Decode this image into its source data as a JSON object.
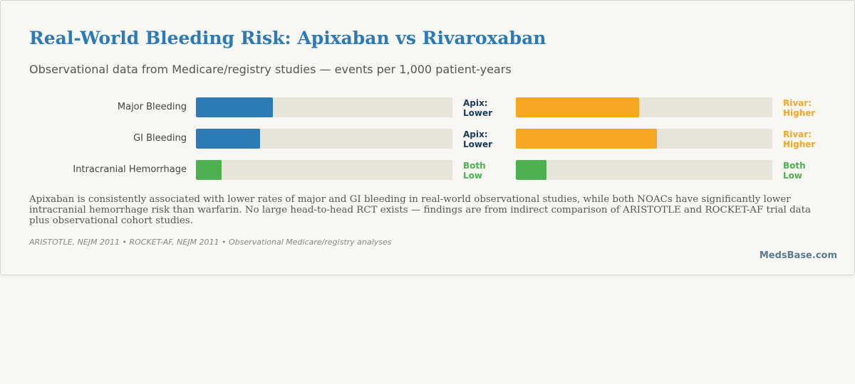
{
  "header": {
    "title": "Real-World Bleeding Risk: Apixaban vs Rivaroxaban",
    "subtitle": "Observational data from Medicare/registry studies — events per 1,000 patient-years"
  },
  "rows": [
    {
      "label": "Major Bleeding",
      "apixaban": {
        "value": 30,
        "color": "#2c7bb6",
        "note": "Apix: Lower",
        "note_color": "#1a3a5c"
      },
      "rivaroxaban": {
        "value": 48,
        "color": "#f5a623",
        "note": "Rivar: Higher",
        "note_color": "#f5a623"
      }
    },
    {
      "label": "GI Bleeding",
      "apixaban": {
        "value": 25,
        "color": "#2c7bb6",
        "note": "Apix: Lower",
        "note_color": "#1a3a5c"
      },
      "rivaroxaban": {
        "value": 55,
        "color": "#f5a623",
        "note": "Rivar: Higher",
        "note_color": "#f5a623"
      }
    },
    {
      "label": "Intracranial Hemorrhage",
      "apixaban": {
        "value": 10,
        "color": "#4caf50",
        "note": "Both Low",
        "note_color": "#4caf50"
      },
      "rivaroxaban": {
        "value": 12,
        "color": "#4caf50",
        "note": "Both Low",
        "note_color": "#4caf50"
      }
    }
  ],
  "summary": "Apixaban is consistently associated with lower rates of major and GI bleeding in real-world observational studies, while both NOACs have significantly lower intracranial hemorrhage risk than warfarin. No large head-to-head RCT exists — findings are from indirect comparison of ARISTOTLE and ROCKET-AF trial data plus observational cohort studies.",
  "sources": "ARISTOTLE, NEJM 2011 • ROCKET-AF, NEJM 2011 • Observational Medicare/registry analyses",
  "brand": "MedsBase.com"
}
